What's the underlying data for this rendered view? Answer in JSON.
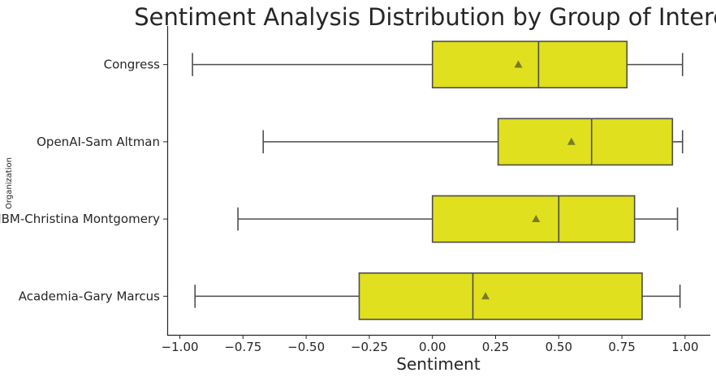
{
  "chart_data": {
    "type": "box",
    "orientation": "horizontal",
    "title": "Sentiment Analysis Distribution by Group of Interest",
    "xlabel": "Sentiment",
    "ylabel": "Organization",
    "xlim": [
      -1.05,
      1.1
    ],
    "xticks": [
      -1.0,
      -0.75,
      -0.5,
      -0.25,
      0.0,
      0.25,
      0.5,
      0.75,
      1.0
    ],
    "xtick_labels": [
      "−1.00",
      "−0.75",
      "−0.50",
      "−0.25",
      "0.00",
      "0.25",
      "0.50",
      "0.75",
      "1.00"
    ],
    "grid": false,
    "colors": {
      "box_fill": "#e0e01e",
      "line": "#4d4d4d",
      "mean_marker": "#7a7a2a"
    },
    "categories": [
      "Congress",
      "OpenAI-Sam Altman",
      "IBM-Christina Montgomery",
      "Academia-Gary Marcus"
    ],
    "boxes": [
      {
        "category": "Congress",
        "whisker_low": -0.95,
        "q1": 0.0,
        "median": 0.42,
        "q3": 0.77,
        "whisker_high": 0.99,
        "mean": 0.34
      },
      {
        "category": "OpenAI-Sam Altman",
        "whisker_low": -0.67,
        "q1": 0.26,
        "median": 0.63,
        "q3": 0.95,
        "whisker_high": 0.99,
        "mean": 0.55
      },
      {
        "category": "IBM-Christina Montgomery",
        "whisker_low": -0.77,
        "q1": 0.0,
        "median": 0.5,
        "q3": 0.8,
        "whisker_high": 0.97,
        "mean": 0.41
      },
      {
        "category": "Academia-Gary Marcus",
        "whisker_low": -0.94,
        "q1": -0.29,
        "median": 0.16,
        "q3": 0.83,
        "whisker_high": 0.98,
        "mean": 0.21
      }
    ]
  }
}
